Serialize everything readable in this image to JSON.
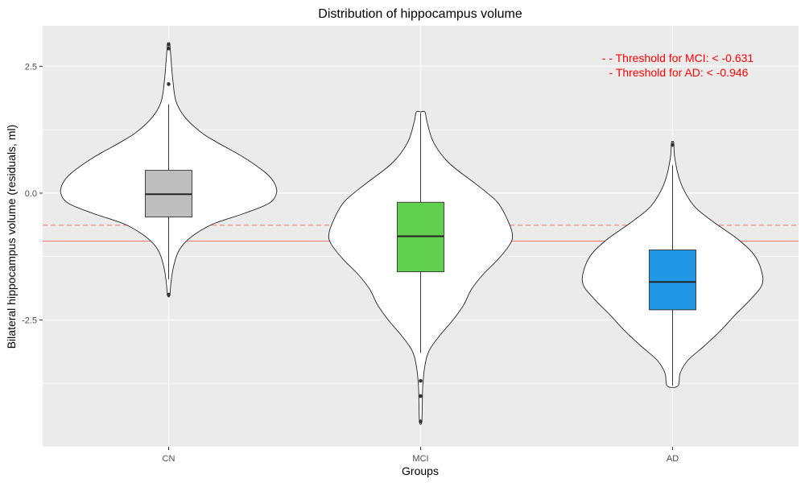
{
  "chart_data": {
    "type": "violin",
    "title": "Distribution of hippocampus volume",
    "xlabel": "Groups",
    "ylabel": "Bilateral hippocampus volume (residuals, ml)",
    "categories": [
      "CN",
      "MCI",
      "AD"
    ],
    "y_ticks": [
      2.5,
      0.0,
      -2.5
    ],
    "y_tick_labels": [
      "2.5",
      "0.0",
      "-2.5"
    ],
    "ylim": [
      -5.0,
      3.3
    ],
    "grid": true,
    "groups": [
      {
        "name": "CN",
        "fill": "#bebebe",
        "box": {
          "q1": -0.47,
          "median": -0.02,
          "q3": 0.45,
          "whisker_low": -1.7,
          "whisker_high": 1.75
        },
        "outliers": [
          2.15,
          2.85,
          2.93,
          -2.0
        ],
        "violin": {
          "y": [
            2.95,
            2.7,
            2.2,
            1.8,
            1.5,
            1.2,
            1.0,
            0.7,
            0.4,
            0.2,
            0.0,
            -0.2,
            -0.4,
            -0.6,
            -0.8,
            -1.0,
            -1.2,
            -1.5,
            -1.8,
            -2.02
          ],
          "density": [
            0.01,
            0.02,
            0.04,
            0.07,
            0.15,
            0.3,
            0.45,
            0.7,
            0.9,
            0.98,
            1.0,
            0.93,
            0.7,
            0.42,
            0.25,
            0.14,
            0.08,
            0.04,
            0.02,
            0.01
          ]
        }
      },
      {
        "name": "MCI",
        "fill": "#61d04f",
        "box": {
          "q1": -1.55,
          "median": -0.85,
          "q3": -0.18,
          "whisker_low": -3.15,
          "whisker_high": 1.58
        },
        "outliers": [
          -3.7,
          -4.0,
          -4.5
        ],
        "violin": {
          "y": [
            1.6,
            1.4,
            1.0,
            0.6,
            0.2,
            0.0,
            -0.2,
            -0.5,
            -0.8,
            -1.0,
            -1.3,
            -1.6,
            -1.9,
            -2.2,
            -2.5,
            -2.8,
            -3.1,
            -3.4,
            -3.8,
            -4.2,
            -4.52
          ],
          "density": [
            0.04,
            0.06,
            0.12,
            0.26,
            0.5,
            0.62,
            0.72,
            0.8,
            0.85,
            0.83,
            0.72,
            0.58,
            0.47,
            0.4,
            0.3,
            0.18,
            0.08,
            0.04,
            0.02,
            0.015,
            0.01
          ]
        }
      },
      {
        "name": "AD",
        "fill": "#2297e6",
        "box": {
          "q1": -2.3,
          "median": -1.75,
          "q3": -1.12,
          "whisker_low": -3.8,
          "whisker_high": 0.55
        },
        "outliers": [
          0.95
        ],
        "violin": {
          "y": [
            1.0,
            0.7,
            0.3,
            0.0,
            -0.3,
            -0.6,
            -0.9,
            -1.2,
            -1.5,
            -1.8,
            -2.1,
            -2.4,
            -2.7,
            -3.0,
            -3.3,
            -3.55,
            -3.8
          ],
          "density": [
            0.01,
            0.02,
            0.06,
            0.12,
            0.22,
            0.4,
            0.6,
            0.75,
            0.82,
            0.83,
            0.72,
            0.58,
            0.45,
            0.3,
            0.14,
            0.07,
            0.05
          ]
        }
      }
    ],
    "thresholds": [
      {
        "label": "- - Threshold for MCI: < -0.631",
        "value": -0.631,
        "linetype": "dashed",
        "color": "#f8766d"
      },
      {
        "label": "- Threshold for AD: < -0.946",
        "value": -0.946,
        "linetype": "solid",
        "color": "#f8766d"
      }
    ],
    "annotation_color": "#ff0000"
  }
}
